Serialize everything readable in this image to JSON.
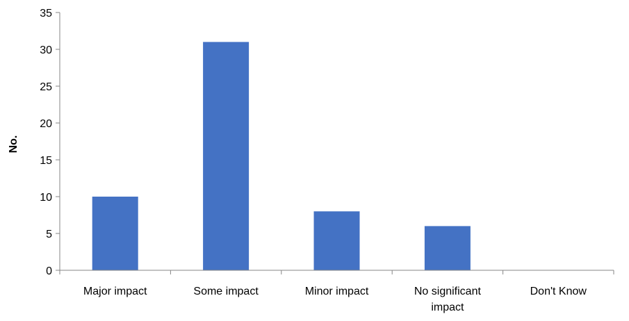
{
  "chart_data": {
    "type": "bar",
    "title": "",
    "xlabel": "",
    "ylabel": "No.",
    "categories": [
      [
        "Major impact"
      ],
      [
        "Some impact"
      ],
      [
        "Minor impact"
      ],
      [
        "No significant",
        "impact"
      ],
      [
        "Don't Know"
      ]
    ],
    "values": [
      10,
      31,
      8,
      6,
      0
    ],
    "ylim": [
      0,
      35
    ],
    "yticks": [
      "0",
      "5",
      "10",
      "15",
      "20",
      "25",
      "30",
      "35"
    ],
    "grid": false,
    "legend": "none",
    "bar_color": "#4472C4",
    "axis_color": "#868686"
  }
}
